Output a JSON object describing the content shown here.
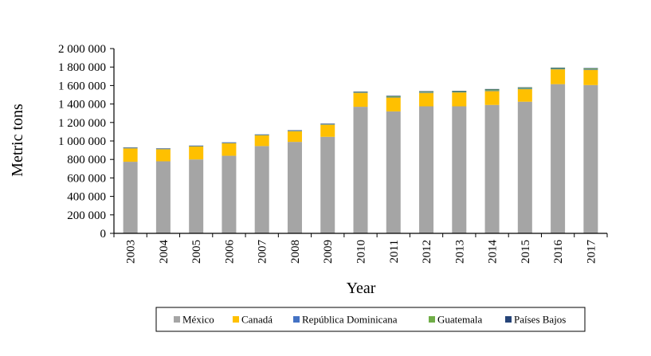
{
  "chart_data": {
    "type": "bar",
    "stacked": true,
    "title": "",
    "xlabel": "Year",
    "ylabel": "Metric tons",
    "ylim": [
      0,
      2000000
    ],
    "ytick_step": 200000,
    "ytick_labels": [
      "0",
      "200 000",
      "400 000",
      "600 000",
      "800 000",
      "1 000 000",
      "1 200 000",
      "1 400 000",
      "1 600 000",
      "1 800 000",
      "2 000 000"
    ],
    "categories": [
      "2003",
      "2004",
      "2005",
      "2006",
      "2007",
      "2008",
      "2009",
      "2010",
      "2011",
      "2012",
      "2013",
      "2014",
      "2015",
      "2016",
      "2017"
    ],
    "legend_position": "bottom",
    "series": [
      {
        "name": "México",
        "color": "#a5a5a5",
        "values": [
          775000,
          780000,
          800000,
          840000,
          945000,
          990000,
          1045000,
          1370000,
          1320000,
          1375000,
          1375000,
          1390000,
          1425000,
          1615000,
          1605000
        ]
      },
      {
        "name": "Canadá",
        "color": "#ffc000",
        "values": [
          145000,
          130000,
          140000,
          135000,
          115000,
          115000,
          130000,
          150000,
          150000,
          145000,
          150000,
          150000,
          135000,
          160000,
          165000
        ]
      },
      {
        "name": "República Dominicana",
        "color": "#4472c4",
        "values": [
          3000,
          3000,
          3000,
          3000,
          3000,
          3000,
          3000,
          4000,
          5000,
          5000,
          5000,
          6000,
          6000,
          6000,
          6000
        ]
      },
      {
        "name": "Guatemala",
        "color": "#70ad47",
        "values": [
          2000,
          2000,
          2000,
          2000,
          3000,
          3000,
          3000,
          5000,
          8000,
          8000,
          8000,
          10000,
          10000,
          8000,
          8000
        ]
      },
      {
        "name": "Países Bajos",
        "color": "#264478",
        "values": [
          5000,
          5000,
          5000,
          5000,
          5000,
          5000,
          6000,
          6000,
          6000,
          6000,
          5000,
          6000,
          5000,
          5000,
          5000
        ]
      }
    ]
  }
}
